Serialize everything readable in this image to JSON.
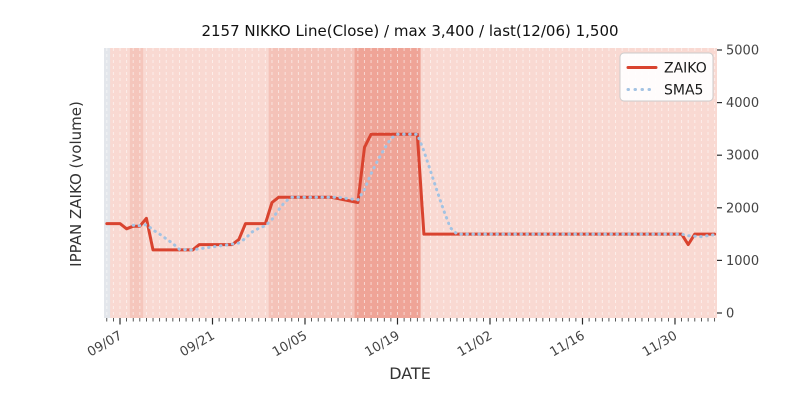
{
  "figure": {
    "title": "2157 NIKKO Line(Close) / max 3,400 / last(12/06) 1,500"
  },
  "chart_data": {
    "type": "line",
    "title": "2157 NIKKO Line(Close) / max 3,400 / last(12/06) 1,500",
    "xlabel": "DATE",
    "ylabel": "IPPAN ZAIKO (volume)",
    "ylim": [
      0,
      5000
    ],
    "yticks": [
      "0",
      "1000",
      "2000",
      "3000",
      "4000",
      "5000"
    ],
    "xticks": [
      "09/07",
      "09/21",
      "10/05",
      "10/19",
      "11/02",
      "11/16",
      "11/30"
    ],
    "x_range": [
      "09/04",
      "12/06"
    ],
    "grid": "vertical daily white dashed lines, no horizontal grid",
    "y_axis_side": "right",
    "stats": {
      "max": 3400,
      "last_date": "12/06",
      "last_value": 1500
    },
    "legend": {
      "position": "upper right",
      "entries": [
        {
          "label": "ZAIKO",
          "style": "solid",
          "color": "#d9432f"
        },
        {
          "label": "SMA5",
          "style": "dotted",
          "color": "#a3c3e3"
        }
      ]
    },
    "series": [
      {
        "name": "ZAIKO",
        "style": "solid",
        "color": "#d9432f",
        "points": [
          [
            "09/05",
            1700
          ],
          [
            "09/07",
            1700
          ],
          [
            "09/08",
            1600
          ],
          [
            "09/09",
            1650
          ],
          [
            "09/10",
            1650
          ],
          [
            "09/11",
            1800
          ],
          [
            "09/12",
            1200
          ],
          [
            "09/18",
            1200
          ],
          [
            "09/19",
            1300
          ],
          [
            "09/24",
            1300
          ],
          [
            "09/25",
            1400
          ],
          [
            "09/26",
            1700
          ],
          [
            "09/29",
            1700
          ],
          [
            "09/30",
            2100
          ],
          [
            "10/01",
            2200
          ],
          [
            "10/09",
            2200
          ],
          [
            "10/13",
            2100
          ],
          [
            "10/14",
            3150
          ],
          [
            "10/15",
            3400
          ],
          [
            "10/22",
            3400
          ],
          [
            "10/23",
            1500
          ],
          [
            "11/02",
            1500
          ],
          [
            "11/16",
            1500
          ],
          [
            "12/01",
            1500
          ],
          [
            "12/02",
            1300
          ],
          [
            "12/03",
            1500
          ],
          [
            "12/06",
            1500
          ]
        ]
      },
      {
        "name": "SMA5",
        "style": "dotted",
        "color": "#a3c3e3",
        "points": [
          [
            "09/09",
            1670
          ],
          [
            "09/10",
            1660
          ],
          [
            "09/11",
            1680
          ],
          [
            "09/12",
            1580
          ],
          [
            "09/13",
            1500
          ],
          [
            "09/14",
            1410
          ],
          [
            "09/15",
            1320
          ],
          [
            "09/16",
            1210
          ],
          [
            "09/18",
            1200
          ],
          [
            "09/19",
            1220
          ],
          [
            "09/23",
            1290
          ],
          [
            "09/25",
            1330
          ],
          [
            "09/26",
            1420
          ],
          [
            "09/27",
            1540
          ],
          [
            "09/28",
            1610
          ],
          [
            "09/29",
            1660
          ],
          [
            "09/30",
            1780
          ],
          [
            "10/01",
            1960
          ],
          [
            "10/02",
            2120
          ],
          [
            "10/03",
            2200
          ],
          [
            "10/10",
            2200
          ],
          [
            "10/13",
            2150
          ],
          [
            "10/14",
            2350
          ],
          [
            "10/15",
            2650
          ],
          [
            "10/16",
            2900
          ],
          [
            "10/17",
            3120
          ],
          [
            "10/18",
            3320
          ],
          [
            "10/19",
            3400
          ],
          [
            "10/22",
            3400
          ],
          [
            "10/23",
            3080
          ],
          [
            "10/24",
            2700
          ],
          [
            "10/25",
            2320
          ],
          [
            "10/26",
            1950
          ],
          [
            "10/27",
            1620
          ],
          [
            "10/28",
            1500
          ],
          [
            "11/16",
            1500
          ],
          [
            "12/01",
            1500
          ],
          [
            "12/02",
            1470
          ],
          [
            "12/04",
            1450
          ],
          [
            "12/06",
            1490
          ]
        ]
      }
    ],
    "background": {
      "plot_bg": "#f9d9d2",
      "bands": [
        {
          "from": "09/04",
          "to": "09/05",
          "color": "#e3e6eb"
        },
        {
          "from": "09/09",
          "to": "09/10",
          "color": "#f5c6bc"
        },
        {
          "from": "09/30",
          "to": "10/12",
          "color": "#f4c2b8"
        },
        {
          "from": "10/13",
          "to": "10/22",
          "color": "#efa497"
        }
      ]
    },
    "colors": {
      "zaiko_line": "#d9432f",
      "sma5_line": "#a3c3e3",
      "grid_line": "rgba(255,255,255,0.55)",
      "tick_color": "#2b2b2b",
      "legend_border": "#cccccc"
    }
  }
}
